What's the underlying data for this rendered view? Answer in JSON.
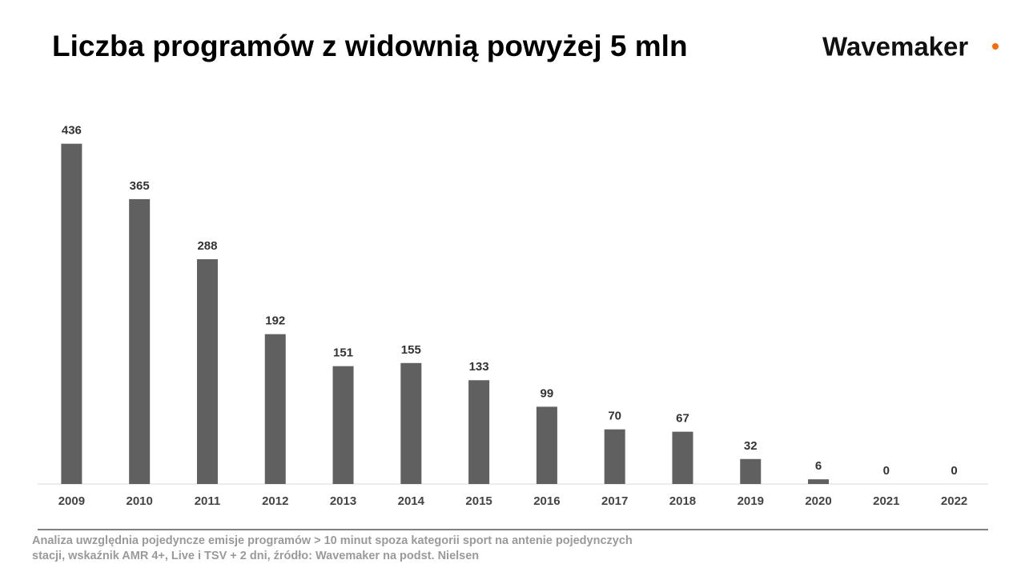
{
  "chart_data": {
    "type": "bar",
    "title": "Liczba programów z widownią powyżej 5 mln",
    "logo": "Wavemaker",
    "categories": [
      "2009",
      "2010",
      "2011",
      "2012",
      "2013",
      "2014",
      "2015",
      "2016",
      "2017",
      "2018",
      "2019",
      "2020",
      "2021",
      "2022"
    ],
    "values": [
      436,
      365,
      288,
      192,
      151,
      155,
      133,
      99,
      70,
      67,
      32,
      6,
      0,
      0
    ],
    "color": "#606060",
    "ylim": [
      0,
      450
    ],
    "footnote": [
      "Analiza uwzględnia pojedyncze emisje programów > 10 minut spoza kategorii sport na antenie pojedynczych",
      "stacji, wskaźnik AMR 4+, Live i TSV + 2 dni, źródło: Wavemaker na podst. Nielsen"
    ]
  }
}
